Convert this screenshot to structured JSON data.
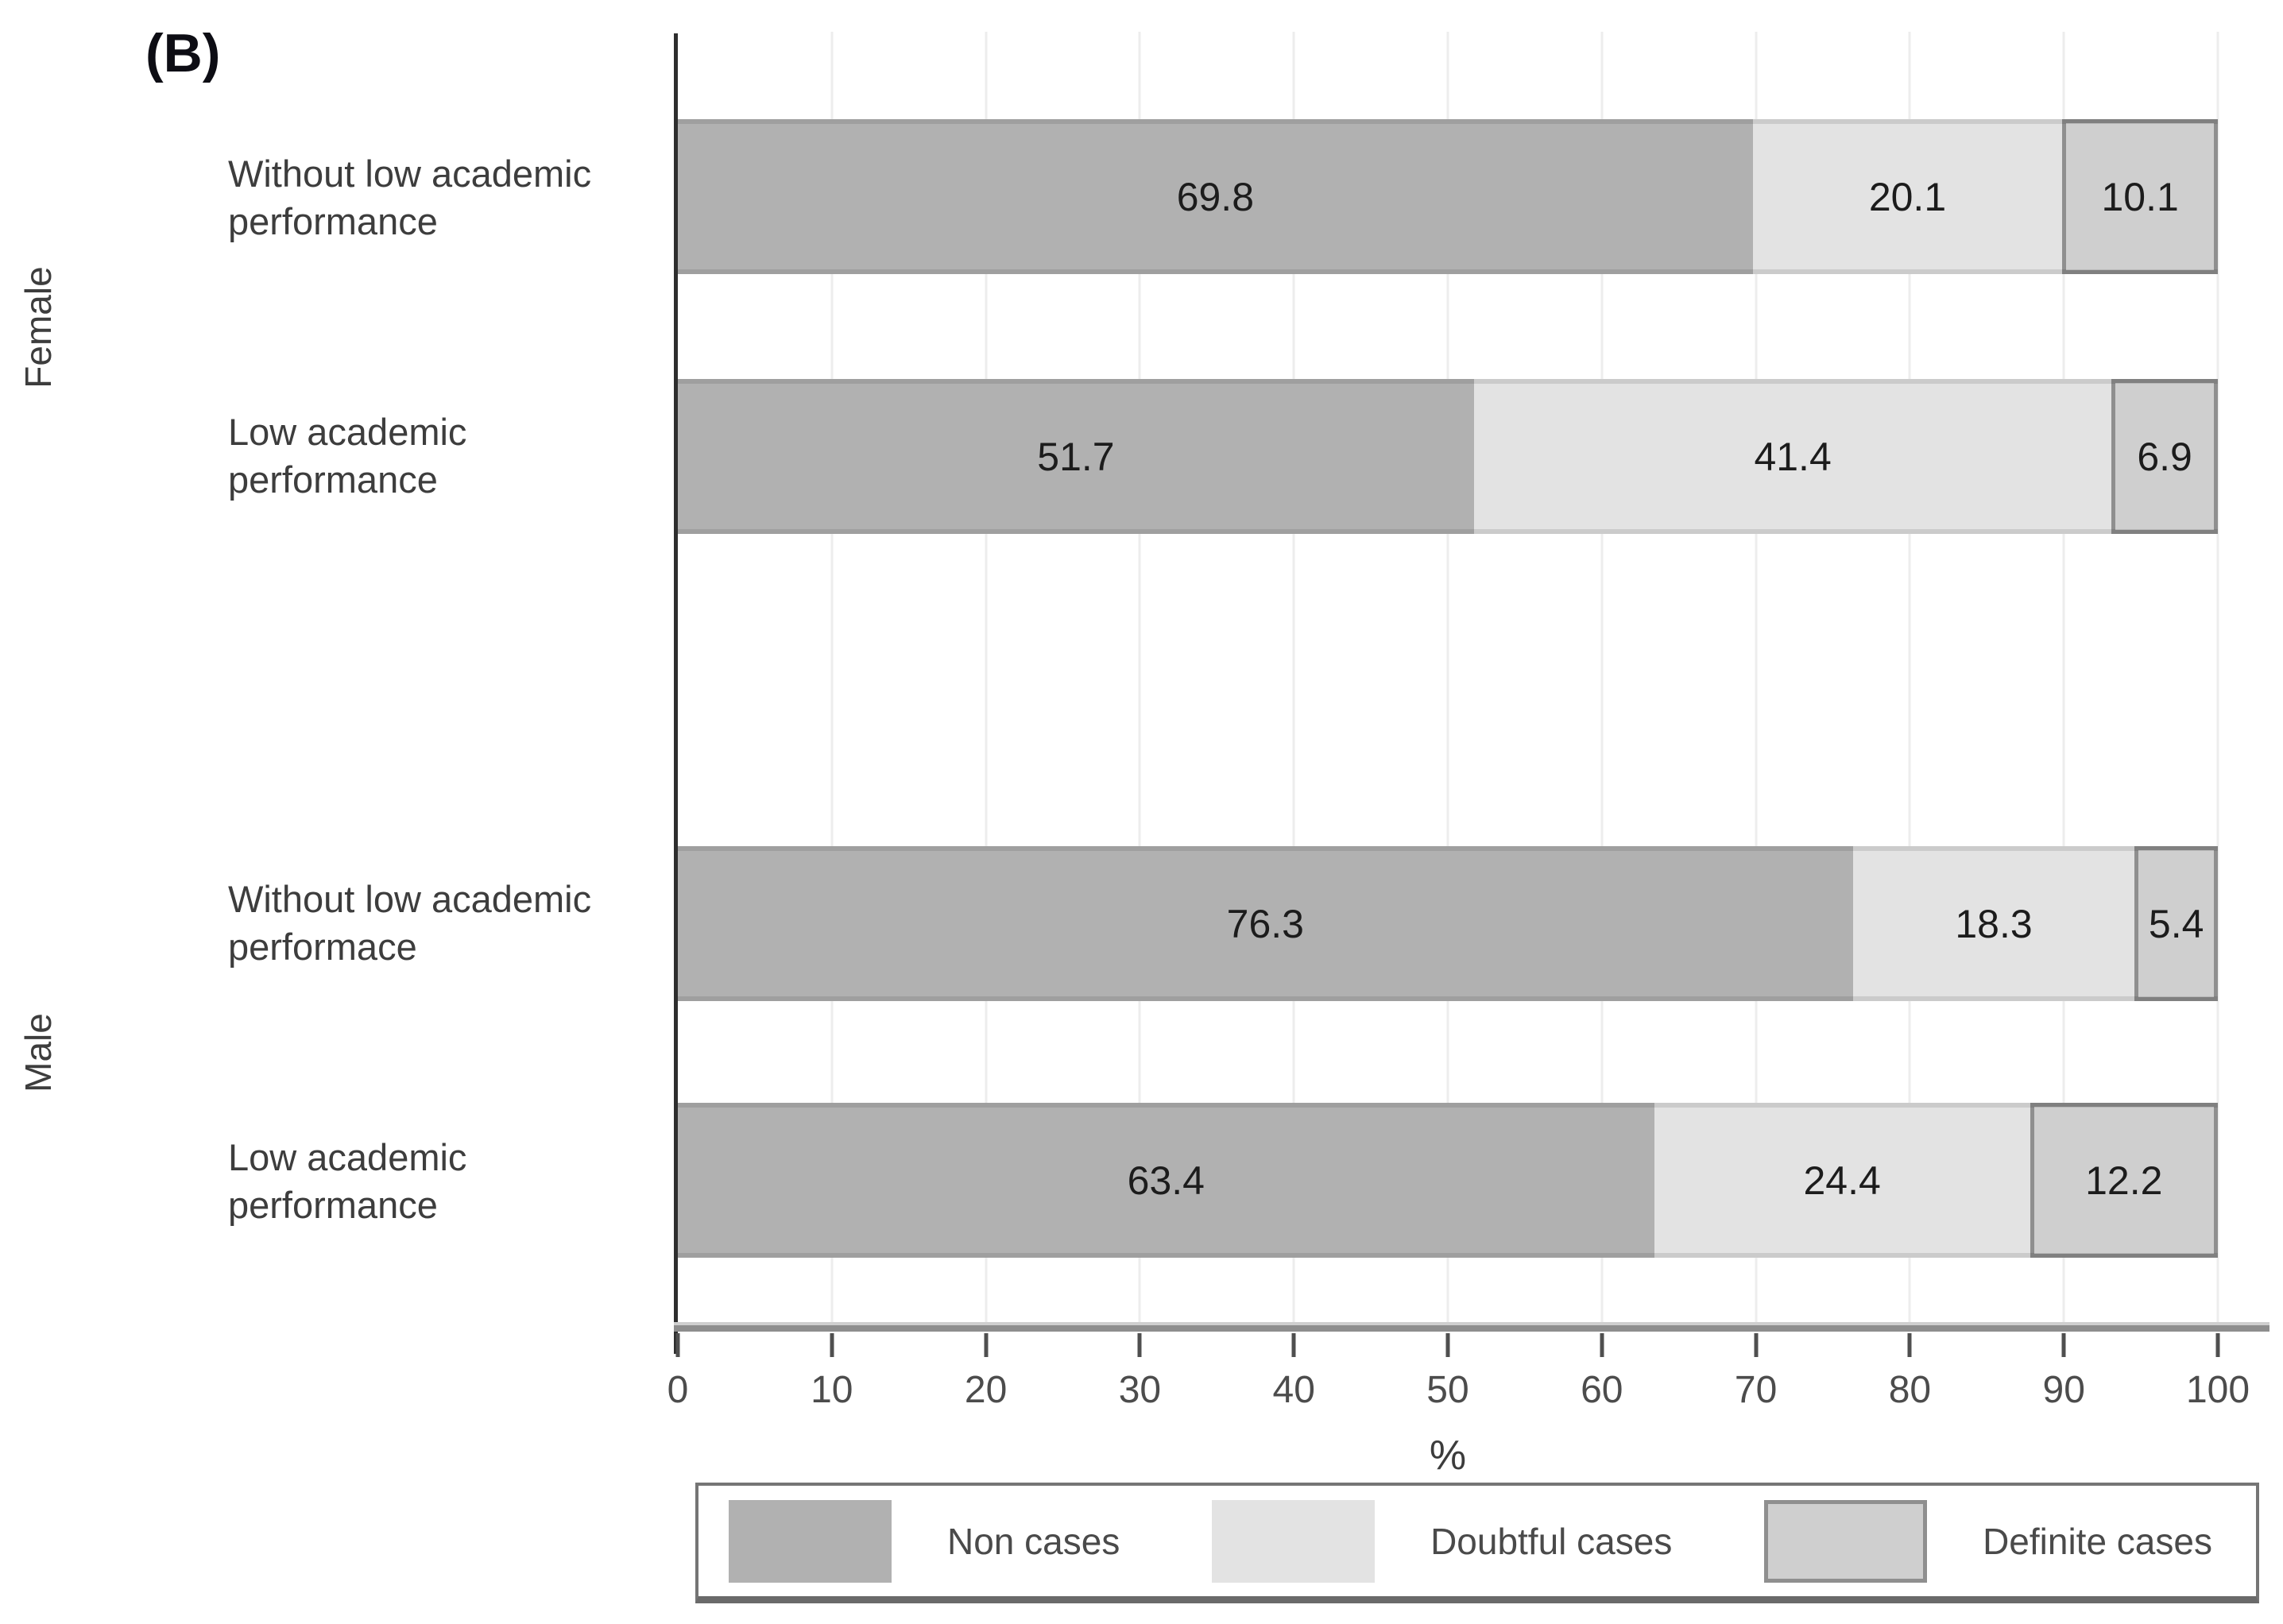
{
  "panel_label": "(B)",
  "colors": {
    "non_cases_fill": "#b1b1b1",
    "doubtful_cases_fill": "#e3e3e3",
    "definite_cases_fill": "#cfcfcf",
    "definite_cases_border": "#8f8f8f",
    "axis_line": "#2e2e2e",
    "x_axis_line": "#8e8e8e",
    "gridline": "#ededed",
    "text": "#3d3d3d"
  },
  "chart_data": {
    "type": "bar",
    "orientation": "horizontal",
    "stacked": true,
    "title": "(B)",
    "xlabel": "%",
    "xlim": [
      0,
      100
    ],
    "xticks": [
      0,
      10,
      20,
      30,
      40,
      50,
      60,
      70,
      80,
      90,
      100
    ],
    "grid": "vertical light gridlines at every 10",
    "group_labels": [
      "Female",
      "Male"
    ],
    "categories": [
      "Female - Without low academic performance",
      "Female - Low academic performance",
      "Male - Without low academic performace",
      "Male - Low academic performance"
    ],
    "category_display": [
      [
        "Without low academic",
        "performance"
      ],
      [
        "Low academic",
        "performance"
      ],
      [
        "Without low academic",
        "performace"
      ],
      [
        "Low academic",
        "performance"
      ]
    ],
    "series": [
      {
        "name": "Non cases",
        "values": [
          69.8,
          51.7,
          76.3,
          63.4
        ],
        "color": "#b1b1b1"
      },
      {
        "name": "Doubtful cases",
        "values": [
          20.1,
          41.4,
          18.3,
          24.4
        ],
        "color": "#e3e3e3"
      },
      {
        "name": "Definite cases",
        "values": [
          10.1,
          6.9,
          5.4,
          12.2
        ],
        "color": "#cfcfcf",
        "border_color": "#8f8f8f"
      }
    ],
    "legend": {
      "position": "bottom",
      "entries": [
        "Non cases",
        "Doubtful cases",
        "Definite cases"
      ]
    }
  }
}
